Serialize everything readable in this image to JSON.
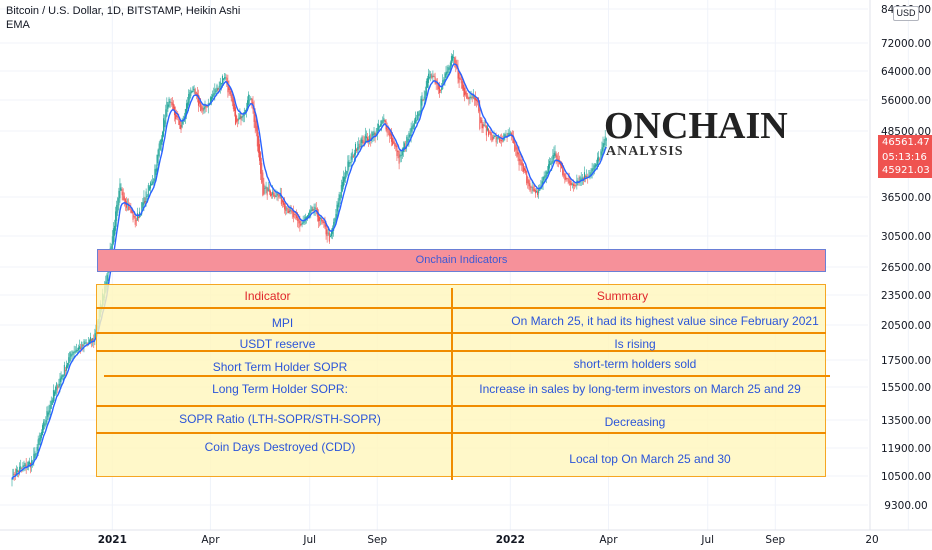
{
  "header": {
    "title": "Bitcoin / U.S. Dollar, 1D, BITSTAMP, Heikin Ashi",
    "indicator": "EMA"
  },
  "currency": "USD",
  "price_badges": {
    "last": "46561.47",
    "countdown": "05:13:16",
    "ema": "45921.03"
  },
  "logo": {
    "main": "ONCHAIN",
    "sub": "ANALYSIS"
  },
  "banner": "Onchain Indicators",
  "table": {
    "headers": [
      "Indicator",
      "Summary"
    ],
    "rows": [
      {
        "indicator": "MPI",
        "summary": "On March 25, it had its highest value since February 2021"
      },
      {
        "indicator": "USDT reserve",
        "summary": "Is rising"
      },
      {
        "indicator": "Short Term Holder SOPR",
        "summary": "short-term holders sold"
      },
      {
        "indicator": "Long Term Holder SOPR:",
        "summary": "Increase in sales by long-term investors on March 25 and 29"
      },
      {
        "indicator": "SOPR Ratio (LTH-SOPR/STH-SOPR)",
        "summary": "Decreasing"
      },
      {
        "indicator": "Coin Days Destroyed (CDD)",
        "summary": "Local top On March 25 and 30"
      }
    ]
  },
  "colors": {
    "up": "#26a69a",
    "down": "#ef5350",
    "ema": "#2962ff",
    "accent": "#f08c00"
  },
  "chart_data": {
    "type": "line",
    "scale": "log",
    "y_ticks": [
      "84000.00",
      "72000.00",
      "64000.00",
      "56000.00",
      "48500.00",
      "36500.00",
      "30500.00",
      "26500.00",
      "23500.00",
      "20500.00",
      "17500.00",
      "15500.00",
      "13500.00",
      "11900.00",
      "10500.00",
      "9300.00"
    ],
    "x_ticks": [
      "2021",
      "Apr",
      "Jul",
      "Sep",
      "2022",
      "Apr",
      "Jul",
      "Sep",
      "20"
    ],
    "ylim": [
      8500,
      86000
    ],
    "series": [
      {
        "x": [
          "2020-10-01",
          "2020-10-20",
          "2020-11-05",
          "2020-11-25",
          "2020-12-15",
          "2020-12-25",
          "2021-01-08",
          "2021-01-22",
          "2021-02-08",
          "2021-02-21",
          "2021-03-05",
          "2021-03-14",
          "2021-03-25",
          "2021-04-14",
          "2021-04-25",
          "2021-05-08",
          "2021-05-19",
          "2021-06-01",
          "2021-06-22",
          "2021-07-05",
          "2021-07-20",
          "2021-08-01",
          "2021-08-14",
          "2021-08-30",
          "2021-09-07",
          "2021-09-21",
          "2021-10-05",
          "2021-10-20",
          "2021-10-28",
          "2021-11-09",
          "2021-11-20",
          "2021-12-01",
          "2021-12-04",
          "2021-12-20",
          "2022-01-01",
          "2022-01-10",
          "2022-01-24",
          "2022-02-10",
          "2022-02-24",
          "2022-03-10",
          "2022-03-20",
          "2022-03-30"
        ],
        "values": [
          10600,
          11200,
          14500,
          18200,
          19200,
          24500,
          38000,
          32500,
          40000,
          56000,
          49000,
          59500,
          53000,
          63000,
          50000,
          57500,
          37500,
          37000,
          32000,
          34500,
          30000,
          40000,
          46000,
          48000,
          51000,
          43000,
          50000,
          64000,
          59000,
          67500,
          57500,
          57000,
          50000,
          46500,
          47500,
          42000,
          36500,
          44000,
          38500,
          40000,
          41500,
          47000
        ]
      }
    ]
  }
}
